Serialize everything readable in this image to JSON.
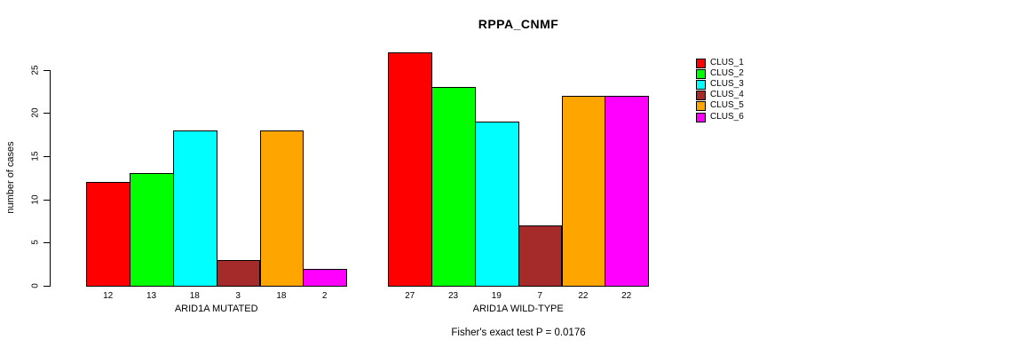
{
  "title": "RPPA_CNMF",
  "chart_data": {
    "type": "bar",
    "title": "RPPA_CNMF",
    "ylabel": "number of cases",
    "xlabel": "",
    "yticks": [
      0,
      5,
      10,
      15,
      20,
      25
    ],
    "ylim": [
      0,
      27
    ],
    "grid": false,
    "legend_position": "right",
    "legend": [
      {
        "label": "CLUS_1",
        "color": "#FF0000"
      },
      {
        "label": "CLUS_2",
        "color": "#00FF00"
      },
      {
        "label": "CLUS_3",
        "color": "#00FFFF"
      },
      {
        "label": "CLUS_4",
        "color": "#A52A2A"
      },
      {
        "label": "CLUS_5",
        "color": "#FFA500"
      },
      {
        "label": "CLUS_6",
        "color": "#FF00FF"
      }
    ],
    "groups": [
      {
        "label": "ARID1A MUTATED",
        "values": [
          12,
          13,
          18,
          3,
          18,
          2
        ]
      },
      {
        "label": "ARID1A WILD-TYPE",
        "values": [
          27,
          23,
          19,
          7,
          22,
          22
        ]
      }
    ],
    "annotation": "Fisher's exact test P = 0.0176"
  }
}
